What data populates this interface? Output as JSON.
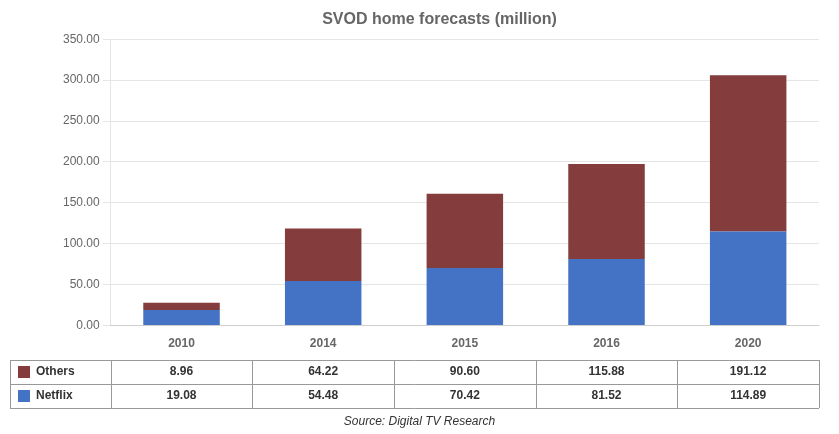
{
  "chart_data": {
    "type": "bar",
    "title": "SVOD home forecasts (million)",
    "source": "Source: Digital TV Research",
    "categories": [
      "2010",
      "2014",
      "2015",
      "2016",
      "2020"
    ],
    "stacked": true,
    "series": [
      {
        "name": "Netflix",
        "color": "#4472C4",
        "values": [
          19.08,
          54.48,
          70.42,
          81.52,
          114.89
        ],
        "value_labels": [
          "19.08",
          "54.48",
          "70.42",
          "81.52",
          "114.89"
        ]
      },
      {
        "name": "Others",
        "color": "#843C3C",
        "values": [
          8.96,
          64.22,
          90.6,
          115.88,
          191.12
        ],
        "value_labels": [
          "8.96",
          "64.22",
          "90.60",
          "115.88",
          "191.12"
        ]
      }
    ],
    "ylim": [
      0,
      350
    ],
    "yticks": [
      {
        "value": 0,
        "label": "0.00"
      },
      {
        "value": 50,
        "label": "50.00"
      },
      {
        "value": 100,
        "label": "100.00"
      },
      {
        "value": 150,
        "label": "150.00"
      },
      {
        "value": 200,
        "label": "200.00"
      },
      {
        "value": 250,
        "label": "250.00"
      },
      {
        "value": 300,
        "label": "300.00"
      },
      {
        "value": 350,
        "label": "350.00"
      }
    ],
    "grid": true
  }
}
